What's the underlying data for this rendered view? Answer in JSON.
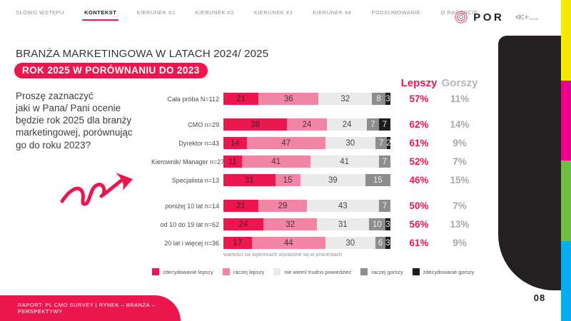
{
  "nav": {
    "items": [
      {
        "id": "slowo-wstepu",
        "label": "SŁOWO WSTĘPU",
        "active": false
      },
      {
        "id": "kontekst",
        "label": "KONTEKST",
        "active": true
      },
      {
        "id": "kierunek-1",
        "label": "KIERUNEK #1",
        "active": false
      },
      {
        "id": "kierunek-2",
        "label": "KIERUNEK #2",
        "active": false
      },
      {
        "id": "kierunek-3",
        "label": "KIERUNEK #3",
        "active": false
      },
      {
        "id": "kierunek-4",
        "label": "KIERUNEK #4",
        "active": false
      },
      {
        "id": "podsumowanie",
        "label": "PODSUMOWANIE",
        "active": false
      },
      {
        "id": "o-raporcie",
        "label": "O RAPORCIE",
        "active": false
      }
    ]
  },
  "logo": {
    "brand": "POR",
    "group_mark": "≪+",
    "group": "Group"
  },
  "header": {
    "title": "BRANŻA MARKETINGOWA W LATACH 2024/ 2025",
    "badge": "ROK 2025 W PORÓWNANIU DO 2023"
  },
  "question": "Proszę zaznaczyć\njaki w Pana/ Pani ocenie\nbędzie rok 2025 dla branży\nmarketingowej, porównując\ngo do roku 2023?",
  "chart_data": {
    "type": "bar",
    "stacked": true,
    "orientation": "horizontal",
    "unit": "percent",
    "xlim": [
      0,
      100
    ],
    "series_labels": [
      "zdecydowanie lepszy",
      "raczej lepszy",
      "nie wiem/ trudno powiedzieć",
      "raczej gorszy",
      "zdecydowanie gorszy"
    ],
    "series_ids": [
      "zdecydowanie-lepszy",
      "raczej-lepszy",
      "nie-wiem-trudno-powiedziec",
      "raczej-gorszy",
      "zdecydowanie-gorszy"
    ],
    "series_colors": [
      "#eb174e",
      "#f185a6",
      "#eaeaea",
      "#8d8d8d",
      "#1e1c1c"
    ],
    "summary_columns": [
      {
        "label": "Lepszy",
        "color": "#eb174e"
      },
      {
        "label": "Gorszy",
        "color": "#b5b5b5"
      }
    ],
    "rows": [
      {
        "label": "Cała próba N=112",
        "values": [
          21,
          36,
          32,
          8,
          3
        ],
        "lepszy": "57%",
        "gorszy": "11%",
        "group_start": false
      },
      {
        "label": "CMO n=29",
        "values": [
          38,
          24,
          24,
          7,
          7
        ],
        "lepszy": "62%",
        "gorszy": "14%",
        "group_start": true
      },
      {
        "label": "Dyrektor n=43",
        "values": [
          14,
          47,
          30,
          7,
          2
        ],
        "lepszy": "61%",
        "gorszy": "9%",
        "group_start": false
      },
      {
        "label": "Kierownik/ Manager n=27",
        "values": [
          11,
          41,
          41,
          7,
          0
        ],
        "lepszy": "52%",
        "gorszy": "7%",
        "group_start": false
      },
      {
        "label": "Specjalista n=13",
        "values": [
          31,
          15,
          39,
          15,
          0
        ],
        "lepszy": "46%",
        "gorszy": "15%",
        "group_start": false
      },
      {
        "label": "poniżej 10 lat n=14",
        "values": [
          21,
          29,
          43,
          7,
          0
        ],
        "lepszy": "50%",
        "gorszy": "7%",
        "group_start": true
      },
      {
        "label": "od 10 do 19 lat n=62",
        "values": [
          24,
          32,
          31,
          10,
          3
        ],
        "lepszy": "56%",
        "gorszy": "13%",
        "group_start": false
      },
      {
        "label": "20 lat i więcej n=36",
        "values": [
          17,
          44,
          30,
          6,
          3
        ],
        "lepszy": "61%",
        "gorszy": "9%",
        "group_start": false
      }
    ],
    "footnote": "wartości na wykresach wyrażone są w procentach"
  },
  "footer": {
    "report": "RAPORT: PL CMO SURVEY  |  RYNEK – BRANŻA – PERSPEKTYWY",
    "page": "08"
  },
  "colors": {
    "accent": "#eb174e",
    "stripe_yellow": "#f3ea00",
    "stripe_magenta": "#ec008c",
    "stripe_green": "#70bf44",
    "stripe_cyan": "#00aeef",
    "panel_black": "#242021"
  }
}
